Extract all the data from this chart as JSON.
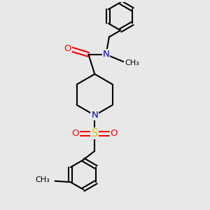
{
  "bg_color": "#e8e8e8",
  "atom_colors": {
    "C": "#000000",
    "N": "#0000cc",
    "O": "#ff0000",
    "S": "#cccc00"
  },
  "bond_width": 1.5,
  "font_size": 9.5,
  "xlim": [
    0,
    10
  ],
  "ylim": [
    0,
    10
  ]
}
